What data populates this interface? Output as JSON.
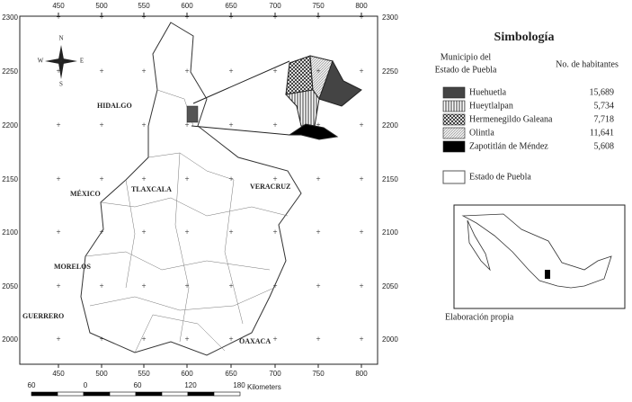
{
  "map": {
    "axis_top": [
      "450",
      "500",
      "550",
      "600",
      "650",
      "700",
      "750",
      "800"
    ],
    "axis_bottom": [
      "450",
      "500",
      "550",
      "600",
      "650",
      "700",
      "750",
      "800"
    ],
    "axis_left": [
      "2300",
      "2250",
      "2200",
      "2150",
      "2100",
      "2050",
      "2000"
    ],
    "axis_right": [
      "2300",
      "2250",
      "2200",
      "2150",
      "2100",
      "2050",
      "2000"
    ],
    "scale_labels": [
      "60",
      "0",
      "60",
      "120",
      "180"
    ],
    "scale_unit": "Kilometers",
    "compass": {
      "n": "N",
      "s": "S",
      "e": "E",
      "w": "W"
    },
    "places": [
      "HIDALGO",
      "MÉXICO",
      "TLAXCALA",
      "VERACRUZ",
      "MORELOS",
      "GUERRERO",
      "OAXACA"
    ]
  },
  "legend": {
    "title": "Simbología",
    "column_left": [
      "Municipio del",
      "Estado de Puebla"
    ],
    "column_right": "No. de habitantes",
    "items": [
      {
        "name": "Huehuetla",
        "value": "15,689"
      },
      {
        "name": "Hueytlalpan",
        "value": "5,734"
      },
      {
        "name": "Hermenegildo Galeana",
        "value": "7,718"
      },
      {
        "name": "Olintla",
        "value": "11,641"
      },
      {
        "name": "Zapotitlán de Méndez",
        "value": "5,608"
      }
    ],
    "boundary": "Estado de Puebla"
  },
  "credit": "Elaboración propia"
}
